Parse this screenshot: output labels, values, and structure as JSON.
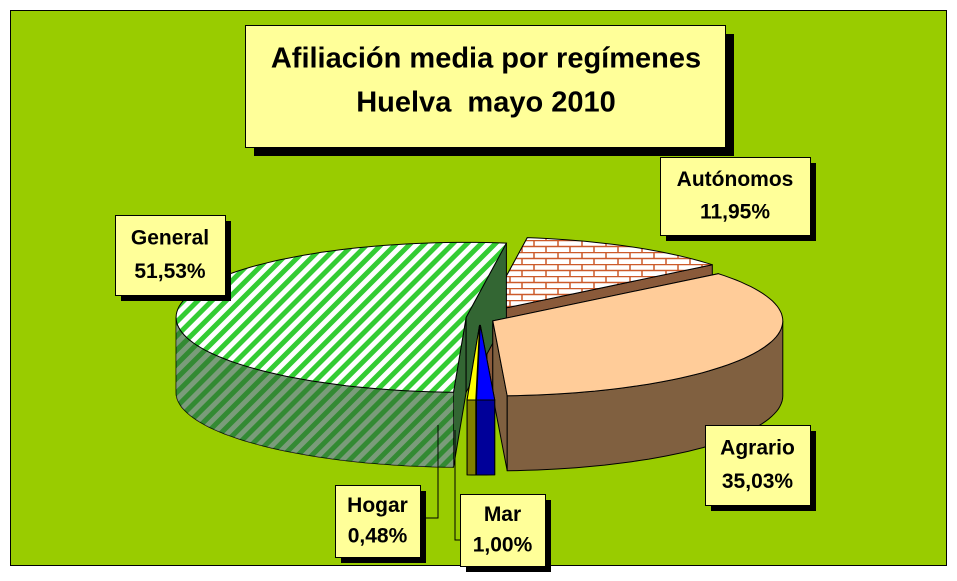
{
  "chart_data": {
    "type": "pie3d",
    "title": "Afiliación media por regímenes",
    "subtitle": "Huelva  mayo 2010",
    "categories": [
      "Autónomos",
      "Agrario",
      "Mar",
      "Hogar",
      "General"
    ],
    "values": [
      11.95,
      35.03,
      1.0,
      0.48,
      51.53
    ],
    "value_labels": [
      "11,95%",
      "35,03%",
      "1,00%",
      "0,48%",
      "51,53%"
    ],
    "colors": [
      "#cc5a2a",
      "#ffcc99",
      "#0000ff",
      "#ffff00",
      "#33cc33"
    ],
    "side_colors": [
      "#8a5a3a",
      "#806040",
      "#000099",
      "#808000",
      "#336633"
    ],
    "patterns": [
      "brick",
      null,
      null,
      null,
      "hatch"
    ],
    "background": "#99cc00"
  }
}
